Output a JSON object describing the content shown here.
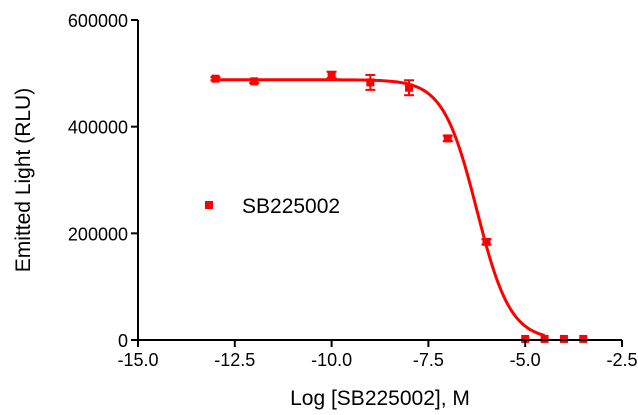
{
  "chart_data": {
    "type": "scatter",
    "xlabel": "Log [SB225002], M",
    "ylabel": "Emitted Light (RLU)",
    "xlim": [
      -15.0,
      -2.5
    ],
    "ylim": [
      0,
      600000
    ],
    "x_ticks": [
      -15.0,
      -12.5,
      -10.0,
      -7.5,
      -5.0,
      -2.5
    ],
    "x_tick_labels": [
      "-15.0",
      "-12.5",
      "-10.0",
      "-7.5",
      "-5.0",
      "-2.5"
    ],
    "y_ticks": [
      0,
      200000,
      400000,
      600000
    ],
    "y_tick_labels": [
      "0",
      "200000",
      "400000",
      "600000"
    ],
    "grid": false,
    "legend_position": "left-middle",
    "color": "#ff0000",
    "series": [
      {
        "name": "SB225002",
        "points": [
          {
            "x": -13.0,
            "y": 490000,
            "err": 3000
          },
          {
            "x": -12.0,
            "y": 485000,
            "err": 3000
          },
          {
            "x": -10.0,
            "y": 497000,
            "err": 6000
          },
          {
            "x": -9.0,
            "y": 483000,
            "err": 14000
          },
          {
            "x": -8.0,
            "y": 473000,
            "err": 14000
          },
          {
            "x": -7.0,
            "y": 378000,
            "err": 5000
          },
          {
            "x": -6.0,
            "y": 184000,
            "err": 5000
          },
          {
            "x": -5.0,
            "y": 2000,
            "err": 0
          },
          {
            "x": -4.5,
            "y": 2000,
            "err": 0
          },
          {
            "x": -4.0,
            "y": 2000,
            "err": 0
          },
          {
            "x": -3.5,
            "y": 2000,
            "err": 0
          }
        ],
        "fit": {
          "model": "sigmoidal dose-response",
          "top": 488000,
          "bottom": 0,
          "logIC50": -6.25,
          "hill_slope": -1.0,
          "x_range": [
            -13.0,
            -4.5
          ]
        }
      }
    ]
  }
}
